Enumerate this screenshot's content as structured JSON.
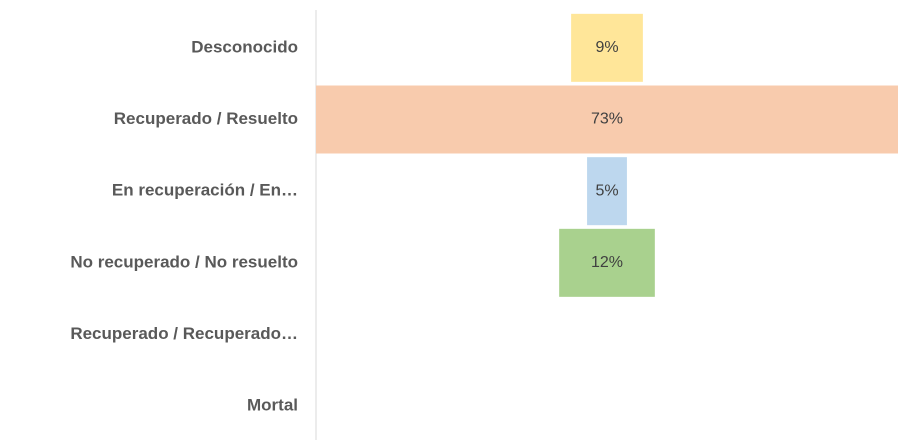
{
  "chart_data": {
    "type": "funnel",
    "categories": [
      "Desconocido",
      "Recuperado / Resuelto",
      "En recuperación / En…",
      "No recuperado / No resuelto",
      "Recuperado / Recuperado…",
      "Mortal"
    ],
    "values": [
      9,
      73,
      5,
      12,
      null,
      null
    ],
    "value_labels": [
      "9%",
      "73%",
      "5%",
      "12%",
      null,
      null
    ],
    "colors": [
      "#ffe699",
      "#f8cbad",
      "#bdd7ee",
      "#a9d18e",
      null,
      null
    ]
  }
}
